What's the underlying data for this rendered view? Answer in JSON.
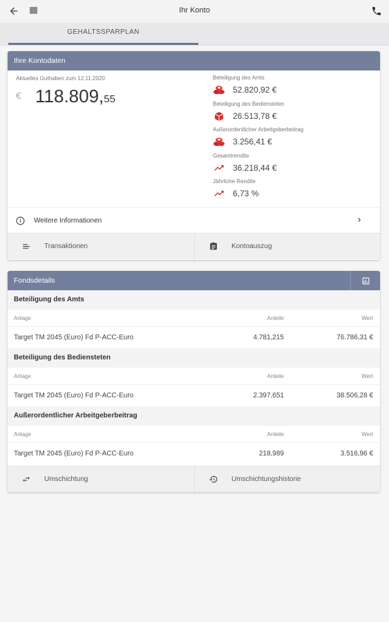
{
  "appbar": {
    "title": "Ihr Konto",
    "back_icon": "arrow-left-icon",
    "menu_icon": "menu-icon",
    "phone_icon": "phone-icon"
  },
  "tabs": [
    {
      "label": "GEHALTSSPARPLAN",
      "active": true
    }
  ],
  "konto": {
    "header": "Ihre Kontodaten",
    "balance_label": "Aktuelles Guthaben zum 12.11.2020",
    "currency": "€",
    "balance_int": "118.809,",
    "balance_dec": "55",
    "stats": [
      {
        "label": "Beteiligung des Amts",
        "value": "52.820,92 €",
        "icon": "coins-icon"
      },
      {
        "label": "Beteiligung des Bediensteten",
        "value": "26.513,78 €",
        "icon": "coin-icon"
      },
      {
        "label": "Außerordentlicher Arbeitgeberbeitrag",
        "value": "3.256,41 €",
        "icon": "coins-icon"
      },
      {
        "label": "Gesamtrendite",
        "value": "36.218,44 €",
        "icon": "trending-up-icon"
      },
      {
        "label": "Jährliche Rendite",
        "value": "6,73 %",
        "icon": "trending-up-icon"
      }
    ],
    "info_label": "Weitere Informationen",
    "actions": [
      {
        "label": "Transaktionen",
        "icon": "list-icon"
      },
      {
        "label": "Kontoauszug",
        "icon": "clipboard-icon"
      }
    ]
  },
  "fonds": {
    "header": "Fondsdetails",
    "chart_icon": "chart-icon",
    "columns": {
      "anlage": "Anlage",
      "anteile": "Anteile",
      "wert": "Wert"
    },
    "sections": [
      {
        "title": "Beteiligung des Amts",
        "rows": [
          {
            "anlage": "Target TM 2045 (Euro) Fd P-ACC-Euro",
            "anteile": "4.781,215",
            "wert": "76.786,31 €"
          }
        ]
      },
      {
        "title": "Beteiligung des Bediensteten",
        "rows": [
          {
            "anlage": "Target TM 2045 (Euro) Fd P-ACC-Euro",
            "anteile": "2.397,651",
            "wert": "38.506,28 €"
          }
        ]
      },
      {
        "title": "Außerordentlicher Arbeitgeberbeitrag",
        "rows": [
          {
            "anlage": "Target TM 2045 (Euro) Fd P-ACC-Euro",
            "anteile": "218,989",
            "wert": "3.516,96 €"
          }
        ]
      }
    ],
    "actions": [
      {
        "label": "Umschichtung",
        "icon": "swap-icon"
      },
      {
        "label": "Umschichtungshistorie",
        "icon": "history-icon"
      }
    ]
  },
  "colors": {
    "accent": "#747f9d",
    "indicator": "#6a7591",
    "icon_red": "#d32f2f"
  }
}
